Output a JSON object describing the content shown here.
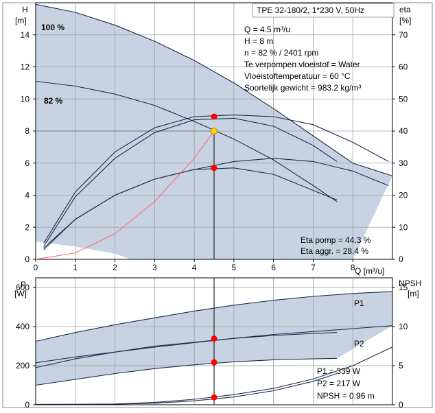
{
  "chart_data": [
    {
      "type": "line",
      "name": "head-efficiency",
      "title": "TPE 32-180/2, 1*230 V, 50Hz",
      "ylabel_left": [
        "H",
        "[m]"
      ],
      "ylabel_right": [
        "eta",
        "[%]"
      ],
      "xlabel": "Q [m³/u]",
      "xlim": [
        0,
        9
      ],
      "ylim_left": [
        0,
        16
      ],
      "ylim_right": [
        0,
        80
      ],
      "xticks": [
        0,
        1,
        2,
        3,
        4,
        5,
        6,
        7,
        8
      ],
      "yticks_left": [
        0,
        2,
        4,
        6,
        8,
        10,
        12,
        14
      ],
      "yticks_right": [
        0,
        10,
        20,
        30,
        40,
        50,
        60,
        70
      ],
      "grid": true,
      "series": [
        {
          "name": "100 %",
          "x": [
            0,
            1,
            2,
            3,
            4,
            5,
            6,
            7,
            8,
            9
          ],
          "y": [
            15.9,
            15.4,
            14.6,
            13.6,
            12.4,
            11.0,
            9.4,
            7.7,
            6.0,
            5.2
          ]
        },
        {
          "name": "82 %",
          "x": [
            0,
            1,
            2,
            3,
            4,
            5,
            6,
            7,
            7.6
          ],
          "y": [
            11.1,
            10.8,
            10.3,
            9.6,
            8.6,
            7.5,
            6.2,
            4.6,
            3.6
          ]
        },
        {
          "name": "",
          "x": [
            0.2,
            1,
            2,
            3,
            4,
            5,
            6,
            7,
            8,
            8.9
          ],
          "y": [
            1.0,
            4.2,
            6.7,
            8.2,
            8.9,
            9.0,
            8.9,
            8.4,
            7.3,
            6.1
          ]
        },
        {
          "name": "",
          "x": [
            0.2,
            1,
            2,
            3,
            4,
            5,
            6,
            7,
            7.6
          ],
          "y": [
            0.8,
            3.9,
            6.3,
            7.9,
            8.7,
            8.8,
            8.3,
            7.1,
            6.1
          ]
        },
        {
          "name": "",
          "x": [
            0.2,
            1,
            2,
            3,
            4,
            5,
            6,
            7,
            8,
            8.9
          ],
          "y": [
            0.7,
            2.5,
            4.0,
            5.0,
            5.6,
            6.1,
            6.3,
            6.1,
            5.5,
            4.6
          ]
        },
        {
          "name": "",
          "x": [
            0.2,
            1,
            2,
            3,
            4,
            5,
            6,
            7,
            7.6
          ],
          "y": [
            0.6,
            2.5,
            4.0,
            5.0,
            5.6,
            5.7,
            5.3,
            4.3,
            3.7
          ]
        },
        {
          "name": "",
          "x": [
            0,
            1,
            2,
            3,
            4,
            4.5
          ],
          "y": [
            0,
            0.4,
            1.6,
            3.6,
            6.3,
            8.0
          ]
        }
      ],
      "markers": [
        {
          "x": 4.5,
          "y": 8.9,
          "color": "#ff0000"
        },
        {
          "x": 4.5,
          "y": 8.0,
          "color": "#ffd700"
        },
        {
          "x": 4.5,
          "y": 5.7,
          "color": "#ff0000"
        }
      ],
      "annotations": [
        "Q = 4.5 m³/u",
        "H = 8 m",
        "n = 82 % / 2401 rpm",
        "Te verpompen vloeistof = Water",
        "Vloeistoftemperatuur = 60 °C",
        "Soortelijk gewicht = 983.2 kg/m³"
      ],
      "annotations_bottom": [
        "Eta pomp = 44.3 %",
        "Eta aggr. = 28.4 %"
      ]
    },
    {
      "type": "line",
      "name": "power-npsh",
      "ylabel_left": [
        "P",
        "[W]"
      ],
      "ylabel_right": [
        "NPSH",
        "[m]"
      ],
      "xlim": [
        0,
        9
      ],
      "ylim_left": [
        0,
        650
      ],
      "ylim_right": [
        0,
        16.25
      ],
      "yticks_left": [
        0,
        200,
        400,
        600
      ],
      "yticks_right": [
        0,
        5,
        10,
        15
      ],
      "grid": true,
      "series": [
        {
          "name": "P1",
          "x": [
            0,
            1,
            2,
            3,
            4,
            5,
            6,
            7,
            8,
            9
          ],
          "y": [
            325,
            370,
            410,
            445,
            480,
            510,
            535,
            555,
            570,
            580
          ]
        },
        {
          "name": "P2",
          "x": [
            0,
            1,
            2,
            3,
            4,
            5,
            6,
            7,
            8,
            9
          ],
          "y": [
            215,
            245,
            270,
            295,
            318,
            340,
            360,
            375,
            390,
            405
          ]
        },
        {
          "name": "",
          "x": [
            0,
            1,
            2,
            3,
            4,
            5,
            6,
            7,
            7.6
          ],
          "y": [
            190,
            235,
            270,
            300,
            320,
            340,
            355,
            365,
            370
          ]
        },
        {
          "name": "",
          "x": [
            0,
            1,
            2,
            3,
            4,
            5,
            6,
            7,
            7.6
          ],
          "y": [
            100,
            130,
            160,
            185,
            205,
            220,
            230,
            235,
            238
          ]
        },
        {
          "name": "NPSH",
          "x": [
            0,
            1,
            2,
            3,
            4,
            5,
            6,
            7,
            8,
            9
          ],
          "y": [
            0.05,
            0.06,
            0.1,
            0.3,
            0.7,
            1.3,
            2.1,
            3.3,
            5.0,
            7.4
          ]
        },
        {
          "name": "",
          "x": [
            0,
            1,
            2,
            3,
            4,
            5,
            6,
            7,
            7.6
          ],
          "y": [
            0.05,
            0.05,
            0.08,
            0.2,
            0.5,
            1.0,
            1.8,
            3.0,
            4.0
          ]
        }
      ],
      "markers": [
        {
          "x": 4.5,
          "y": 339,
          "color": "#ff0000"
        },
        {
          "x": 4.5,
          "y": 217,
          "color": "#ff0000"
        },
        {
          "x": 4.5,
          "y": 38,
          "color": "#ff0000"
        }
      ],
      "annotations": [
        "P1 = 339 W",
        "P2 = 217 W",
        "NPSH = 0.96 m"
      ]
    }
  ],
  "colors": {
    "band": "#c7d3e3",
    "curve": "#1a2a4a",
    "system_curve": "#ff6666",
    "grid": "#a0a0a0",
    "op_line": "#777777",
    "p_label": "#1f4f8f"
  }
}
